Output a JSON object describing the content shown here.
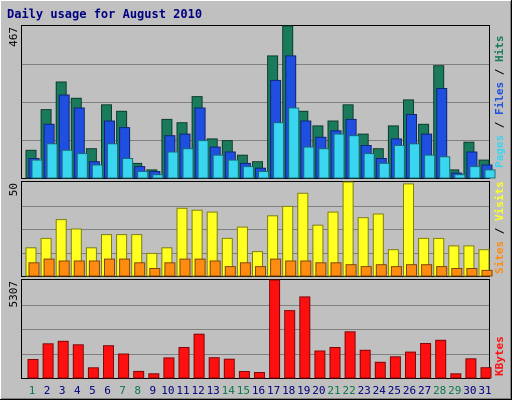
{
  "chart_data": [
    {
      "type": "bar",
      "title": "Daily usage for August 2010",
      "panel": "pages-files-hits",
      "ymax_label": "467",
      "ylim": [
        0,
        467
      ],
      "grid": true,
      "legend": [
        {
          "name": "Hits",
          "color": "#1a7a5c"
        },
        {
          "name": "Files",
          "color": "#1f4fe0"
        },
        {
          "name": "Pages",
          "color": "#3ad6f0"
        }
      ],
      "categories": [
        "1",
        "2",
        "3",
        "4",
        "5",
        "6",
        "7",
        "8",
        "9",
        "10",
        "11",
        "12",
        "13",
        "14",
        "15",
        "16",
        "17",
        "18",
        "19",
        "20",
        "21",
        "22",
        "23",
        "24",
        "25",
        "26",
        "27",
        "28",
        "29",
        "30",
        "31"
      ],
      "weekend_days": [
        "1",
        "7",
        "8",
        "14",
        "15",
        "21",
        "22",
        "28",
        "29"
      ],
      "series": [
        {
          "name": "Hits",
          "values": [
            85,
            210,
            295,
            245,
            90,
            225,
            205,
            45,
            25,
            180,
            170,
            250,
            120,
            115,
            70,
            50,
            375,
            467,
            205,
            160,
            175,
            225,
            135,
            90,
            160,
            240,
            165,
            345,
            25,
            110,
            55
          ]
        },
        {
          "name": "Files",
          "values": [
            60,
            165,
            255,
            215,
            50,
            175,
            155,
            35,
            20,
            130,
            135,
            215,
            95,
            80,
            45,
            30,
            300,
            375,
            175,
            125,
            145,
            180,
            100,
            60,
            120,
            195,
            135,
            275,
            15,
            80,
            40
          ]
        },
        {
          "name": "Pages",
          "values": [
            55,
            105,
            85,
            75,
            40,
            105,
            60,
            20,
            10,
            80,
            90,
            115,
            70,
            55,
            35,
            20,
            170,
            215,
            95,
            90,
            135,
            130,
            75,
            45,
            100,
            105,
            70,
            65,
            10,
            35,
            25
          ]
        }
      ]
    },
    {
      "type": "bar",
      "panel": "visits-sites",
      "ymax_label": "50",
      "ylim": [
        0,
        50
      ],
      "grid": true,
      "legend": [
        {
          "name": "Visits",
          "color": "#ffff20"
        },
        {
          "name": "Sites",
          "color": "#ff8c10"
        }
      ],
      "categories": [
        "1",
        "2",
        "3",
        "4",
        "5",
        "6",
        "7",
        "8",
        "9",
        "10",
        "11",
        "12",
        "13",
        "14",
        "15",
        "16",
        "17",
        "18",
        "19",
        "20",
        "21",
        "22",
        "23",
        "24",
        "25",
        "26",
        "27",
        "28",
        "29",
        "30",
        "31"
      ],
      "series": [
        {
          "name": "Visits",
          "values": [
            15,
            20,
            30,
            25,
            15,
            22,
            22,
            22,
            12,
            15,
            36,
            35,
            34,
            20,
            26,
            13,
            32,
            37,
            44,
            27,
            34,
            50,
            31,
            33,
            14,
            49,
            20,
            20,
            16,
            16,
            14
          ]
        },
        {
          "name": "Sites",
          "values": [
            7,
            9,
            8,
            8,
            8,
            9,
            9,
            7,
            4,
            7,
            9,
            9,
            8,
            5,
            7,
            5,
            9,
            8,
            8,
            7,
            7,
            6,
            5,
            6,
            5,
            6,
            6,
            5,
            4,
            4,
            3
          ]
        }
      ]
    },
    {
      "type": "bar",
      "panel": "kbytes",
      "ymax_label": "5307",
      "ylim": [
        0,
        5307
      ],
      "grid": true,
      "legend": [
        {
          "name": "KBytes",
          "color": "#ff1010"
        }
      ],
      "categories": [
        "1",
        "2",
        "3",
        "4",
        "5",
        "6",
        "7",
        "8",
        "9",
        "10",
        "11",
        "12",
        "13",
        "14",
        "15",
        "16",
        "17",
        "18",
        "19",
        "20",
        "21",
        "22",
        "23",
        "24",
        "25",
        "26",
        "27",
        "28",
        "29",
        "30",
        "31"
      ],
      "series": [
        {
          "name": "KBytes",
          "values": [
            1000,
            1850,
            1990,
            1800,
            550,
            1750,
            1300,
            360,
            230,
            1090,
            1650,
            2370,
            1100,
            1020,
            350,
            300,
            5307,
            3650,
            4390,
            1460,
            1650,
            2500,
            1500,
            850,
            1150,
            1400,
            1870,
            2040,
            230,
            1040,
            560
          ]
        }
      ]
    }
  ]
}
